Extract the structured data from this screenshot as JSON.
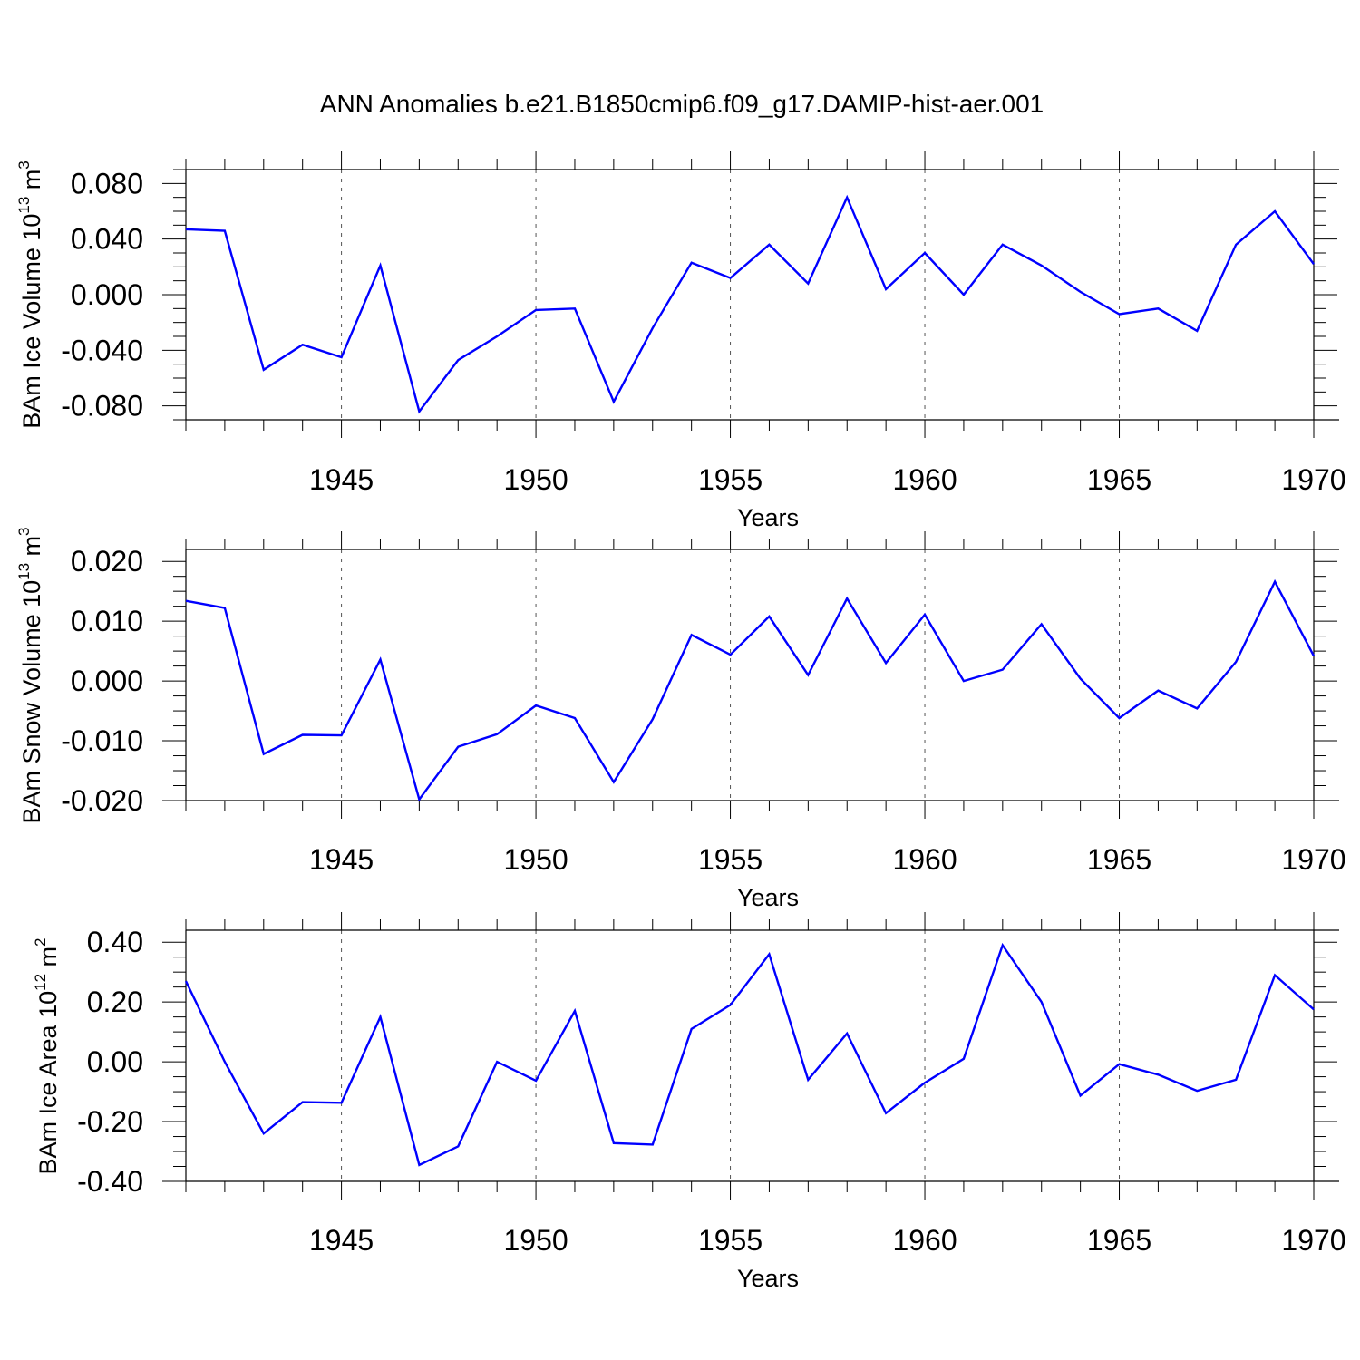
{
  "figure_title": "ANN Anomalies b.e21.B1850cmip6.f09_g17.DAMIP-hist-aer.001",
  "line_color": "#0000ff",
  "chart_data": [
    {
      "type": "line",
      "title": "",
      "xlabel": "Years",
      "ylabel": {
        "text": "BAm Ice Volume 10",
        "exponent": "13",
        "unit": "m",
        "unit_exponent": "3"
      },
      "xlim": [
        1941,
        1970
      ],
      "ylim": [
        -0.09,
        0.09
      ],
      "x_ticks": [
        1945,
        1950,
        1955,
        1960,
        1965,
        1970
      ],
      "x_tick_labels": [
        "1945",
        "1950",
        "1955",
        "1960",
        "1965",
        "1970"
      ],
      "y_ticks": [
        -0.08,
        -0.04,
        0.0,
        0.04,
        0.08
      ],
      "y_tick_labels": [
        "-0.080",
        "-0.040",
        "0.000",
        "0.040",
        "0.080"
      ],
      "grid": "vertical dashed at labeled years",
      "x": [
        1941,
        1942,
        1943,
        1944,
        1945,
        1946,
        1947,
        1948,
        1949,
        1950,
        1951,
        1952,
        1953,
        1954,
        1955,
        1956,
        1957,
        1958,
        1959,
        1960,
        1961,
        1962,
        1963,
        1964,
        1965,
        1966,
        1967,
        1968,
        1969,
        1970
      ],
      "values": [
        0.047,
        0.046,
        -0.054,
        -0.036,
        -0.045,
        0.021,
        -0.084,
        -0.047,
        -0.03,
        -0.011,
        -0.01,
        -0.077,
        -0.024,
        0.023,
        0.012,
        0.036,
        0.008,
        0.07,
        0.004,
        0.03,
        0.0,
        0.036,
        0.021,
        0.002,
        -0.014,
        -0.01,
        -0.026,
        0.036,
        0.06,
        0.022
      ]
    },
    {
      "type": "line",
      "title": "",
      "xlabel": "Years",
      "ylabel": {
        "text": "BAm Snow Volume 10",
        "exponent": "13",
        "unit": "m",
        "unit_exponent": "3"
      },
      "xlim": [
        1941,
        1970
      ],
      "ylim": [
        -0.02,
        0.022
      ],
      "x_ticks": [
        1945,
        1950,
        1955,
        1960,
        1965,
        1970
      ],
      "x_tick_labels": [
        "1945",
        "1950",
        "1955",
        "1960",
        "1965",
        "1970"
      ],
      "y_ticks": [
        -0.02,
        -0.01,
        0.0,
        0.01,
        0.02
      ],
      "y_tick_labels": [
        "-0.020",
        "-0.010",
        "0.000",
        "0.010",
        "0.020"
      ],
      "grid": "vertical dashed at labeled years",
      "x": [
        1941,
        1942,
        1943,
        1944,
        1945,
        1946,
        1947,
        1948,
        1949,
        1950,
        1951,
        1952,
        1953,
        1954,
        1955,
        1956,
        1957,
        1958,
        1959,
        1960,
        1961,
        1962,
        1963,
        1964,
        1965,
        1966,
        1967,
        1968,
        1969,
        1970
      ],
      "values": [
        0.0134,
        0.0122,
        -0.0122,
        -0.009,
        -0.0091,
        0.0036,
        -0.0198,
        -0.011,
        -0.0089,
        -0.0041,
        -0.0062,
        -0.0169,
        -0.0064,
        0.0077,
        0.0044,
        0.0108,
        0.001,
        0.0138,
        0.003,
        0.0111,
        0.0,
        0.0019,
        0.0095,
        0.0004,
        -0.0062,
        -0.0016,
        -0.0046,
        0.0032,
        0.0166,
        0.0042
      ]
    },
    {
      "type": "line",
      "title": "",
      "xlabel": "Years",
      "ylabel": {
        "text": "BAm Ice Area 10",
        "exponent": "12",
        "unit": "m",
        "unit_exponent": "2"
      },
      "xlim": [
        1941,
        1970
      ],
      "ylim": [
        -0.4,
        0.44
      ],
      "x_ticks": [
        1945,
        1950,
        1955,
        1960,
        1965,
        1970
      ],
      "x_tick_labels": [
        "1945",
        "1950",
        "1955",
        "1960",
        "1965",
        "1970"
      ],
      "y_ticks": [
        -0.4,
        -0.2,
        0.0,
        0.2,
        0.4
      ],
      "y_tick_labels": [
        "-0.40",
        "-0.20",
        "0.00",
        "0.20",
        "0.40"
      ],
      "grid": "vertical dashed at labeled years",
      "x": [
        1941,
        1942,
        1943,
        1944,
        1945,
        1946,
        1947,
        1948,
        1949,
        1950,
        1951,
        1952,
        1953,
        1954,
        1955,
        1956,
        1957,
        1958,
        1959,
        1960,
        1961,
        1962,
        1963,
        1964,
        1965,
        1966,
        1967,
        1968,
        1969,
        1970
      ],
      "values": [
        0.27,
        0.0,
        -0.24,
        -0.135,
        -0.137,
        0.15,
        -0.345,
        -0.283,
        0.0,
        -0.063,
        0.17,
        -0.272,
        -0.277,
        0.11,
        0.19,
        0.36,
        -0.06,
        0.095,
        -0.172,
        -0.07,
        0.01,
        0.39,
        0.2,
        -0.113,
        -0.008,
        -0.043,
        -0.097,
        -0.06,
        0.29,
        0.175
      ]
    }
  ]
}
